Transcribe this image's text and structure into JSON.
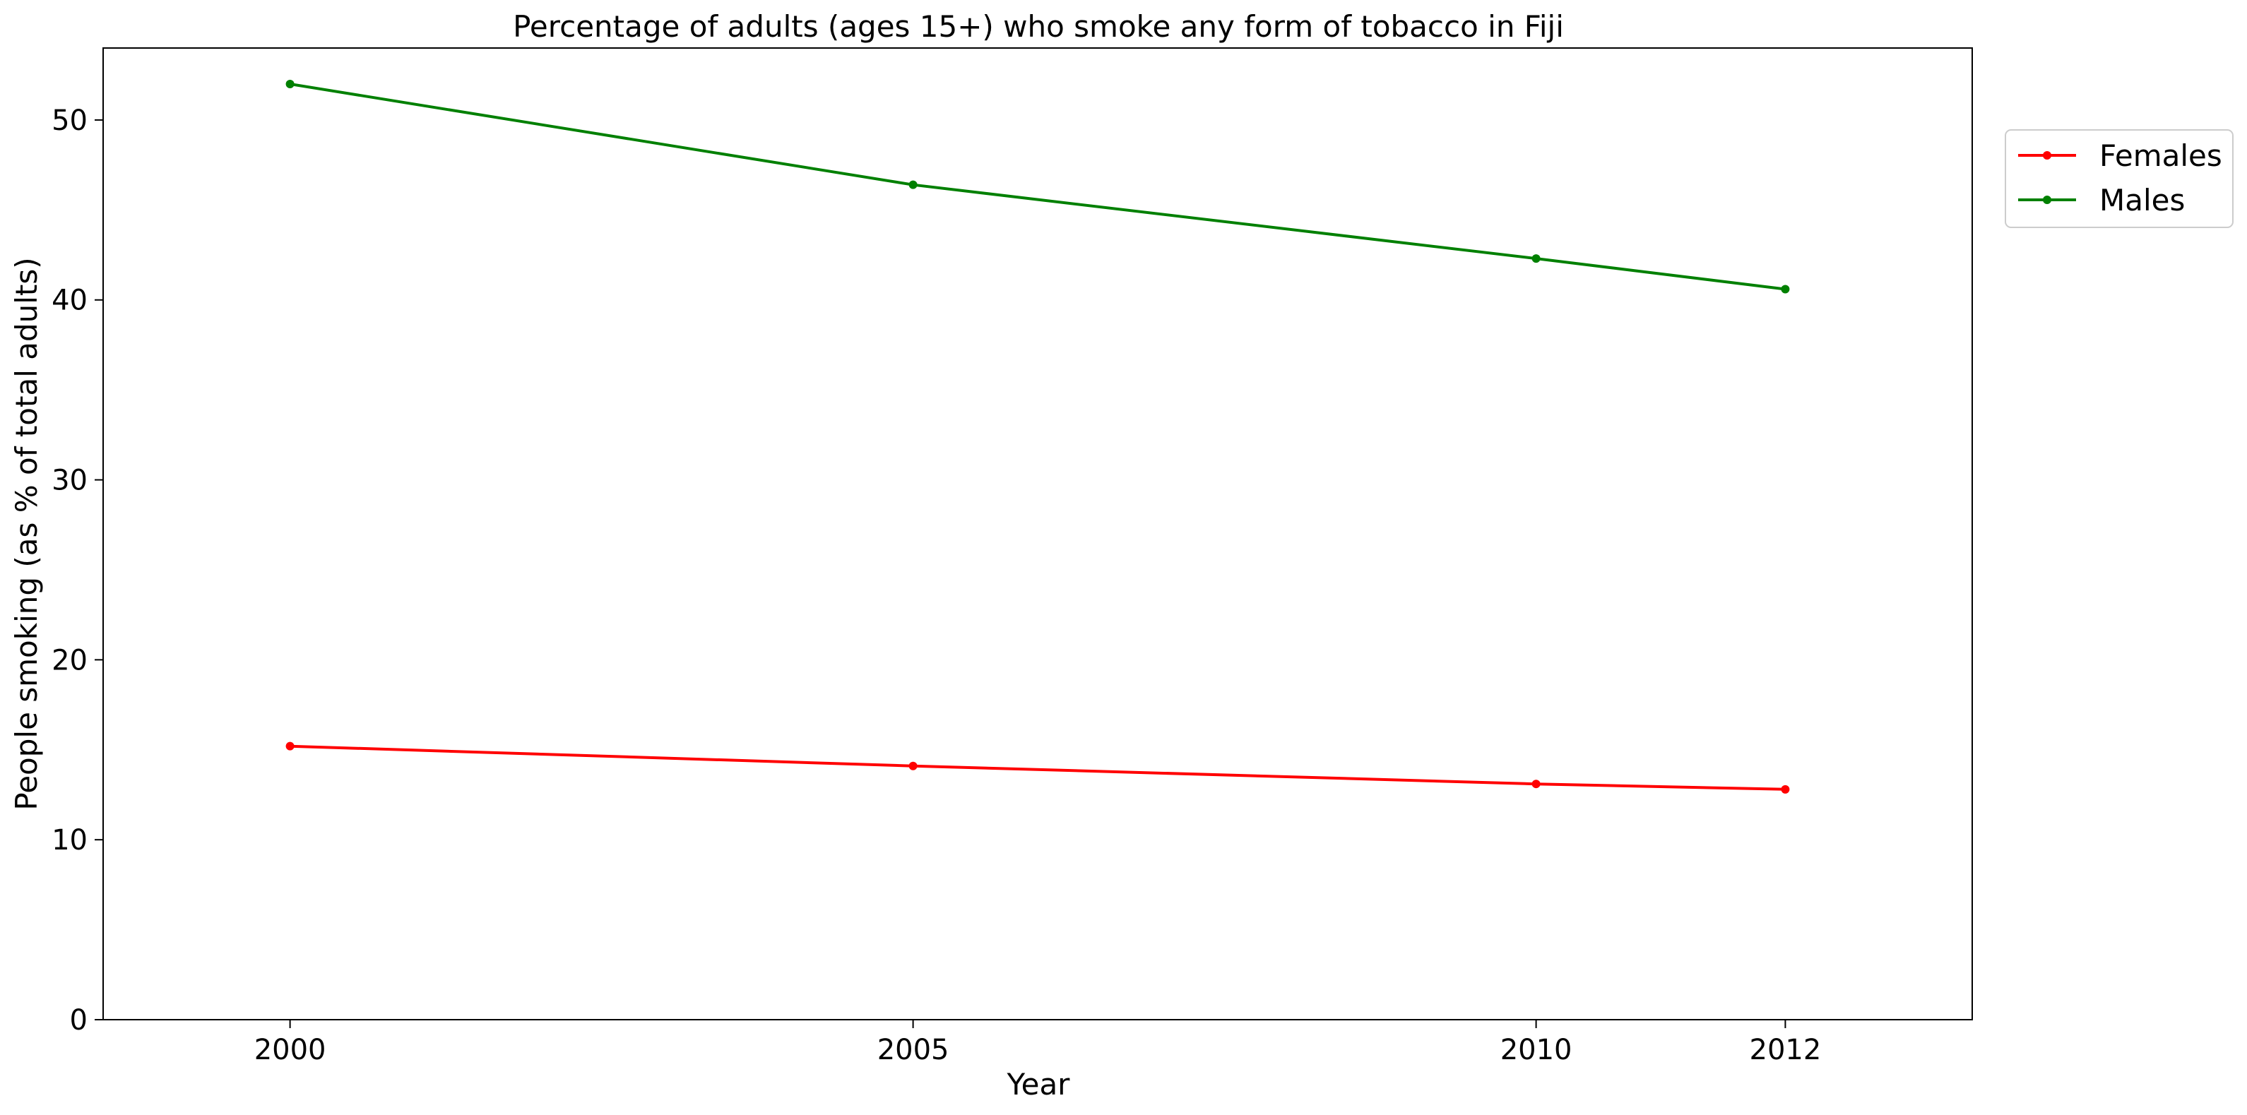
{
  "chart_data": {
    "type": "line",
    "title": "Percentage of adults (ages 15+) who smoke any form of tobacco in Fiji",
    "xlabel": "Year",
    "ylabel": "People smoking (as % of total adults)",
    "x": [
      2000,
      2005,
      2010,
      2012
    ],
    "x_tick_labels": [
      "2000",
      "2005",
      "2010",
      "2012"
    ],
    "y_ticks": [
      0,
      10,
      20,
      30,
      40,
      50
    ],
    "y_tick_labels": [
      "0",
      "10",
      "20",
      "30",
      "40",
      "50"
    ],
    "ylim": [
      0,
      54
    ],
    "grid": false,
    "legend_position": "upper right, outside plot",
    "series": [
      {
        "name": "Females",
        "color": "#ff0000",
        "values": [
          15.2,
          14.1,
          13.1,
          12.8
        ]
      },
      {
        "name": "Males",
        "color": "#008000",
        "values": [
          52.0,
          46.4,
          42.3,
          40.6
        ]
      }
    ]
  }
}
